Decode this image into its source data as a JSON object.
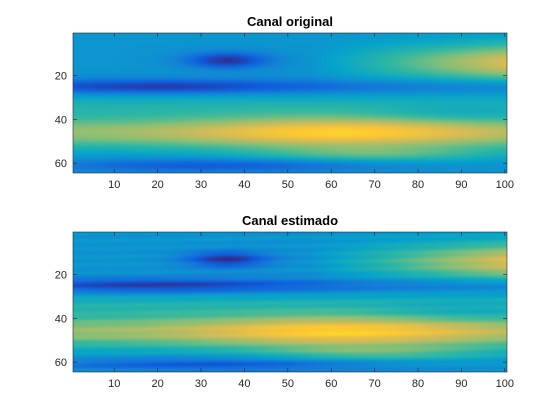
{
  "chart_data": [
    {
      "type": "heatmap",
      "title": "Canal original",
      "xlabel": "",
      "ylabel": "",
      "xlim": [
        0.5,
        100.5
      ],
      "ylim": [
        0.5,
        64.5
      ],
      "y_direction": "reverse",
      "x_ticks": [
        10,
        20,
        30,
        40,
        50,
        60,
        70,
        80,
        90,
        100
      ],
      "y_ticks": [
        20,
        40,
        60
      ],
      "colormap": "parula",
      "color_range": [
        0,
        1
      ],
      "grid": false,
      "rows": 64,
      "cols": 100
    },
    {
      "type": "heatmap",
      "title": "Canal estimado",
      "xlabel": "",
      "ylabel": "",
      "xlim": [
        0.5,
        100.5
      ],
      "ylim": [
        0.5,
        64.5
      ],
      "y_direction": "reverse",
      "x_ticks": [
        10,
        20,
        30,
        40,
        50,
        60,
        70,
        80,
        90,
        100
      ],
      "y_ticks": [
        20,
        40,
        60
      ],
      "colormap": "parula",
      "color_range": [
        0,
        1
      ],
      "grid": false,
      "rows": 64,
      "cols": 100
    }
  ],
  "colors": {
    "parula": [
      "#352a87",
      "#0f5cdd",
      "#1481d6",
      "#06a4ca",
      "#2eb7a4",
      "#87bf77",
      "#d1bb59",
      "#fec832",
      "#f9fb0e"
    ]
  }
}
